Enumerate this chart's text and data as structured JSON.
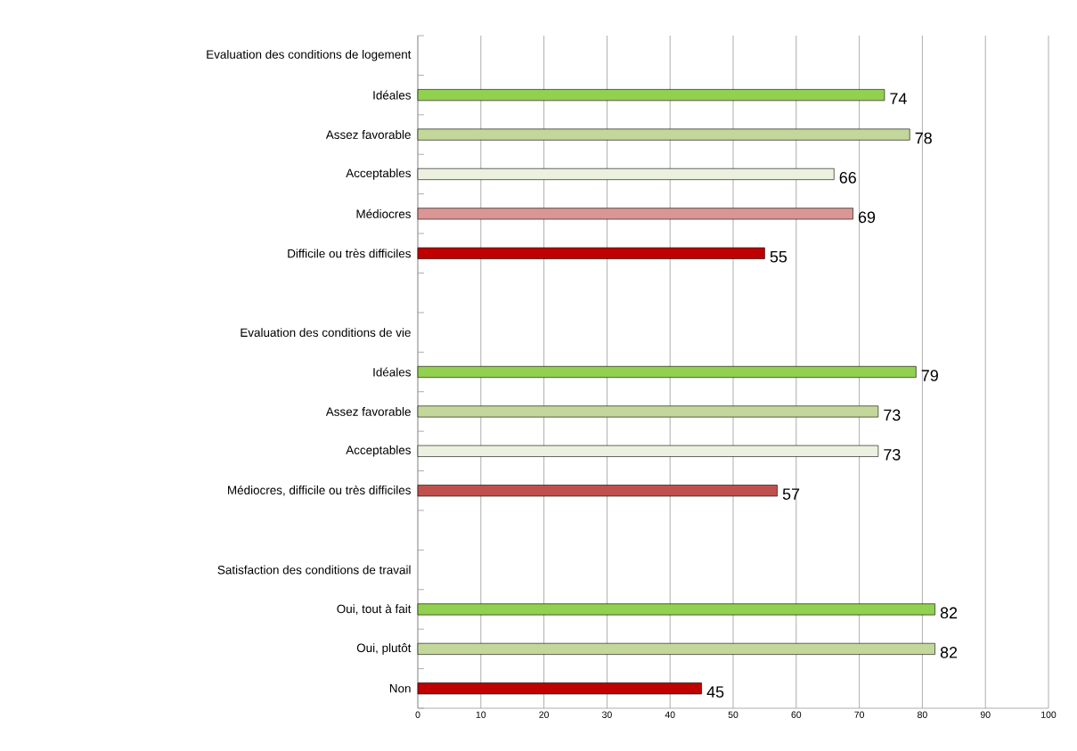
{
  "chart_data": {
    "type": "bar",
    "orientation": "horizontal",
    "categories": [
      "Evaluation des conditions de logement",
      "Idéales",
      "Assez favorable",
      "Acceptables",
      "Médiocres",
      "Difficile ou très difficiles",
      null,
      "Evaluation des conditions de vie",
      "Idéales",
      "Assez favorable",
      "Acceptables",
      "Médiocres, difficile ou très difficiles",
      null,
      "Satisfaction des conditions de travail",
      "Oui, tout à fait",
      "Oui, plutôt",
      "Non"
    ],
    "values": [
      null,
      74,
      78,
      66,
      69,
      55,
      null,
      null,
      79,
      73,
      73,
      57,
      null,
      null,
      82,
      82,
      45
    ],
    "colors": [
      "#92d050",
      "#92d050",
      "#c4d79b",
      "#ebf1de",
      "#da9694",
      "#c00000",
      "#92d050",
      "#92d050",
      "#92d050",
      "#c4d79b",
      "#ebf1de",
      "#c0504d",
      "#92d050",
      "#92d050",
      "#92d050",
      "#c4d79b",
      "#c00000"
    ],
    "data_labels": true,
    "xlim": [
      0,
      100
    ],
    "xticks": [
      0,
      10,
      20,
      30,
      40,
      50,
      60,
      70,
      80,
      90,
      100
    ],
    "grid": "x"
  }
}
